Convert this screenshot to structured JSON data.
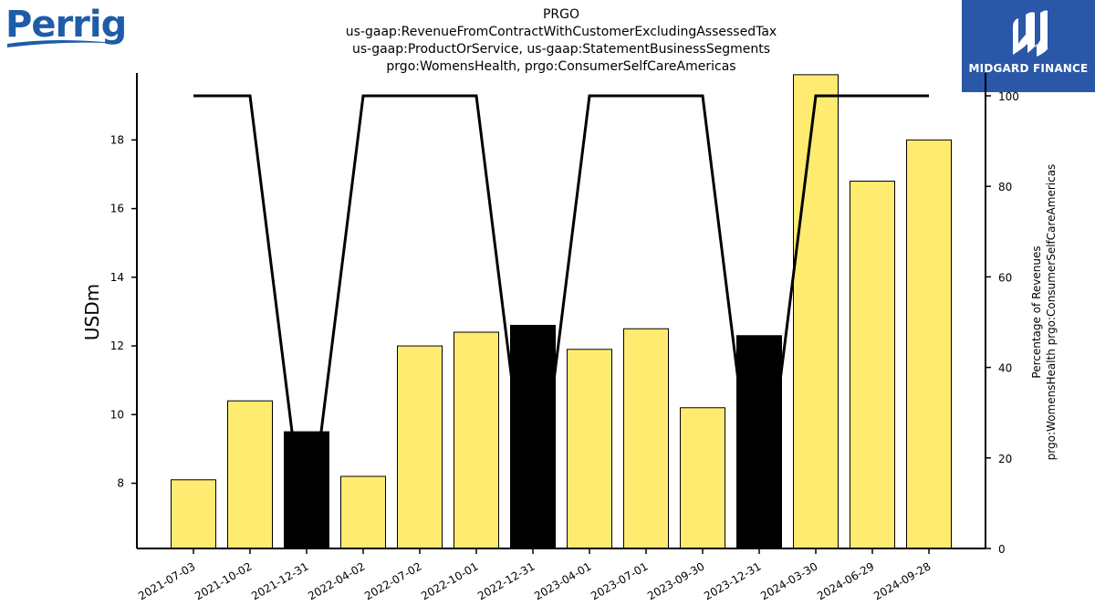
{
  "brand": {
    "company_logo_text": "Perrigo",
    "publisher_logo_text": "MIDGARD FINANCE"
  },
  "chart_data": {
    "type": "bar",
    "title_lines": [
      "PRGO",
      "us-gaap:RevenueFromContractWithCustomerExcludingAssessedTax",
      "us-gaap:ProductOrService, us-gaap:StatementBusinessSegments",
      "prgo:WomensHealth, prgo:ConsumerSelfCareAmericas"
    ],
    "categories": [
      "2021-07-03",
      "2021-10-02",
      "2021-12-31",
      "2022-04-02",
      "2022-07-02",
      "2022-10-01",
      "2022-12-31",
      "2023-04-01",
      "2023-07-01",
      "2023-09-30",
      "2023-12-31",
      "2024-03-30",
      "2024-06-29",
      "2024-09-28"
    ],
    "bars": {
      "values": [
        8.1,
        10.4,
        9.5,
        8.2,
        12.0,
        12.4,
        12.6,
        11.9,
        12.5,
        10.2,
        12.3,
        19.9,
        16.8,
        18.0
      ],
      "highlight": [
        false,
        false,
        true,
        false,
        false,
        false,
        true,
        false,
        false,
        false,
        true,
        false,
        false,
        false
      ],
      "color_normal": "#ffeb70",
      "color_highlight": "#000000"
    },
    "line": {
      "values": [
        100,
        100,
        0,
        100,
        100,
        100,
        0,
        100,
        100,
        100,
        0,
        100,
        100,
        100
      ],
      "color": "#000000"
    },
    "ylabel": "USDm",
    "ylabel_right_lines": [
      "Percentage of Revenues",
      "prgo:WomensHealth prgo:ConsumerSelfCareAmericas"
    ],
    "ylim": [
      6.1,
      19.95
    ],
    "yticks": [
      8,
      10,
      12,
      14,
      16,
      18
    ],
    "y2lim": [
      0,
      100
    ],
    "y2ticks": [
      0,
      20,
      40,
      60,
      80,
      100
    ],
    "grid": false,
    "legend": "none"
  }
}
